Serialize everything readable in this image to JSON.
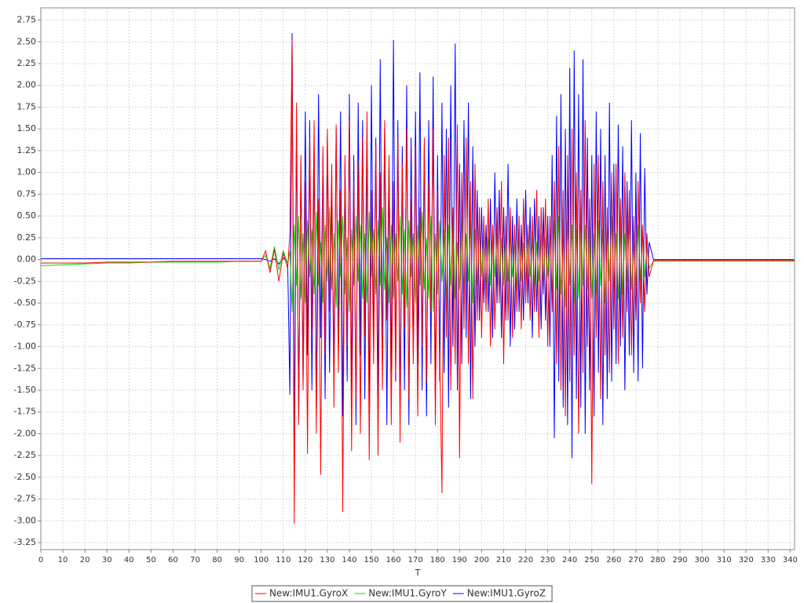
{
  "chart_data": {
    "type": "line",
    "x_label": "T",
    "xlim": [
      0,
      342
    ],
    "ylim": [
      -3.33,
      2.89
    ],
    "xticks": [
      0,
      10,
      20,
      30,
      40,
      50,
      60,
      70,
      80,
      90,
      100,
      110,
      120,
      130,
      140,
      150,
      160,
      170,
      180,
      190,
      200,
      210,
      220,
      230,
      240,
      250,
      260,
      270,
      280,
      290,
      300,
      310,
      320,
      330,
      340
    ],
    "yticks": [
      -3.25,
      {
        "value": -3,
        "label": "-3.00"
      },
      -2.75,
      {
        "value": -2.5,
        "label": "-2.50"
      },
      -2.25,
      {
        "value": -2,
        "label": "-2.00"
      },
      -1.75,
      {
        "value": -1.5,
        "label": "-1.50"
      },
      -1.25,
      {
        "value": -1,
        "label": "-1.00"
      },
      -0.75,
      {
        "value": -0.5,
        "label": "-0.50"
      },
      -0.25,
      {
        "value": 0,
        "label": "0.00"
      },
      0.25,
      {
        "value": 0.5,
        "label": "0.50"
      },
      0.75,
      {
        "value": 1,
        "label": "1.00"
      },
      1.25,
      {
        "value": 1.5,
        "label": "1.50"
      },
      1.75,
      {
        "value": 2,
        "label": "2.00"
      },
      2.25,
      {
        "value": 2.5,
        "label": "2.50"
      },
      2.75
    ],
    "grid": true,
    "legend": "bottom",
    "x": [
      0,
      10,
      20,
      30,
      40,
      50,
      60,
      70,
      80,
      90,
      100,
      102,
      104,
      106,
      108,
      110,
      112,
      113,
      114,
      115,
      116,
      117,
      118,
      119,
      120,
      121,
      122,
      123,
      124,
      125,
      126,
      127,
      128,
      129,
      130,
      131,
      132,
      133,
      134,
      135,
      136,
      137,
      138,
      139,
      140,
      141,
      142,
      143,
      144,
      145,
      146,
      147,
      148,
      149,
      150,
      151,
      152,
      153,
      154,
      155,
      156,
      157,
      158,
      159,
      160,
      161,
      162,
      163,
      164,
      165,
      166,
      167,
      168,
      169,
      170,
      171,
      172,
      173,
      174,
      175,
      176,
      177,
      178,
      179,
      180,
      181,
      182,
      183,
      184,
      185,
      186,
      187,
      188,
      189,
      190,
      191,
      192,
      193,
      194,
      195,
      196,
      197,
      198,
      199,
      200,
      201,
      202,
      203,
      204,
      205,
      206,
      207,
      208,
      209,
      210,
      211,
      212,
      213,
      214,
      215,
      216,
      217,
      218,
      219,
      220,
      221,
      222,
      223,
      224,
      225,
      226,
      227,
      228,
      229,
      230,
      231,
      232,
      233,
      234,
      235,
      236,
      237,
      238,
      239,
      240,
      241,
      242,
      243,
      244,
      245,
      246,
      247,
      248,
      249,
      250,
      251,
      252,
      253,
      254,
      255,
      256,
      257,
      258,
      259,
      260,
      261,
      262,
      263,
      264,
      265,
      266,
      267,
      268,
      269,
      270,
      271,
      272,
      273,
      274,
      275,
      276,
      278,
      290,
      300,
      310,
      320,
      330,
      340,
      342
    ],
    "series": [
      {
        "name": "New:IMU1.GyroX",
        "color": "#ff0000",
        "values": [
          -0.04,
          -0.04,
          -0.04,
          -0.03,
          -0.03,
          -0.03,
          -0.02,
          -0.02,
          -0.02,
          -0.02,
          -0.02,
          0.1,
          -0.15,
          0.12,
          -0.25,
          0.08,
          -0.1,
          0.3,
          2.52,
          -3.03,
          1.8,
          -1.9,
          1.2,
          -1.5,
          0.9,
          -2.23,
          1.4,
          -0.8,
          1.6,
          -2.0,
          0.7,
          -2.47,
          1.3,
          -1.1,
          1.5,
          -0.6,
          1.1,
          -1.7,
          1.55,
          -1.3,
          0.8,
          -2.9,
          1.2,
          -1.0,
          1.6,
          -2.2,
          0.9,
          -1.6,
          1.1,
          -2.0,
          1.4,
          -0.9,
          1.7,
          -2.3,
          0.8,
          -1.2,
          1.3,
          -2.25,
          1.0,
          -1.5,
          1.6,
          -0.7,
          1.2,
          -1.9,
          0.9,
          -1.3,
          1.4,
          -2.1,
          1.1,
          -0.8,
          1.5,
          -1.6,
          0.7,
          -1.2,
          1.3,
          -1.8,
          0.6,
          -1.0,
          1.4,
          -1.4,
          0.9,
          -0.6,
          1.5,
          -1.9,
          0.8,
          -1.1,
          -2.68,
          1.2,
          -0.9,
          1.4,
          -1.5,
          0.6,
          -1.2,
          1.55,
          -2.28,
          1.0,
          -0.8,
          1.4,
          -1.2,
          0.9,
          -1.6,
          1.1,
          -0.7,
          0.6,
          -0.9,
          0.5,
          -0.6,
          0.7,
          -1.0,
          0.4,
          -0.8,
          0.6,
          -0.5,
          0.9,
          -1.2,
          0.5,
          -0.7,
          0.6,
          -0.9,
          0.4,
          -0.6,
          0.5,
          -0.8,
          0.7,
          -0.5,
          0.4,
          -0.7,
          0.5,
          -0.6,
          0.8,
          -0.9,
          0.6,
          -0.4,
          0.7,
          -1.0,
          0.5,
          -0.6,
          0.9,
          -1.2,
          1.3,
          -1.5,
          0.8,
          -1.8,
          1.2,
          -1.4,
          1.5,
          -1.1,
          1.0,
          -2.0,
          0.8,
          -1.3,
          1.6,
          -1.0,
          0.7,
          -2.58,
          1.1,
          -0.9,
          1.2,
          -1.6,
          0.9,
          -1.1,
          0.6,
          -1.3,
          1.0,
          -0.8,
          1.1,
          -1.2,
          0.7,
          -0.9,
          1.0,
          -0.6,
          0.8,
          -1.1,
          0.5,
          -0.7,
          0.9,
          -0.5,
          0.4,
          -0.6,
          0.3,
          -0.2,
          -0.01,
          -0.01,
          -0.01,
          -0.01,
          -0.01,
          -0.01,
          -0.01,
          -0.01
        ]
      },
      {
        "name": "New:IMU1.GyroY",
        "color": "#00dd00",
        "values": [
          -0.07,
          -0.06,
          -0.05,
          -0.04,
          -0.04,
          -0.03,
          -0.03,
          -0.03,
          -0.03,
          -0.02,
          -0.02,
          0.05,
          -0.1,
          0.15,
          -0.12,
          0.1,
          -0.05,
          0.1,
          -0.6,
          0.4,
          -0.3,
          0.5,
          -0.45,
          0.3,
          -0.5,
          0.45,
          -0.2,
          0.35,
          -0.4,
          0.55,
          -0.3,
          0.2,
          -0.5,
          0.4,
          -0.25,
          0.6,
          -0.35,
          0.3,
          -0.55,
          0.45,
          -0.2,
          0.5,
          -0.4,
          0.25,
          -0.6,
          0.35,
          -0.3,
          0.5,
          -0.25,
          0.4,
          -0.45,
          0.3,
          -0.5,
          0.55,
          -0.2,
          0.35,
          -0.4,
          0.45,
          -0.3,
          0.6,
          -0.35,
          0.25,
          -0.5,
          0.4,
          -0.45,
          0.3,
          -0.25,
          0.5,
          -0.4,
          0.35,
          -0.55,
          0.45,
          -0.2,
          0.3,
          -0.5,
          0.4,
          -0.3,
          0.55,
          -0.35,
          0.25,
          -0.45,
          0.5,
          -0.6,
          0.3,
          -0.4,
          0.45,
          -0.25,
          0.35,
          -0.5,
          0.4,
          -0.3,
          0.55,
          -0.45,
          0.2,
          -0.35,
          0.5,
          -0.4,
          0.3,
          -0.25,
          0.45,
          -0.5,
          0.35,
          -0.3,
          0.4,
          -0.2,
          0.3,
          -0.35,
          0.25,
          -0.3,
          0.35,
          -0.2,
          0.3,
          -0.4,
          0.25,
          -0.3,
          0.35,
          -0.25,
          0.3,
          -0.2,
          0.25,
          -0.35,
          0.3,
          -0.25,
          0.2,
          -0.3,
          0.35,
          -0.2,
          0.25,
          -0.3,
          0.2,
          -0.25,
          0.3,
          -0.35,
          0.25,
          -0.2,
          0.3,
          -0.4,
          0.45,
          -0.35,
          0.5,
          -0.4,
          0.3,
          -0.55,
          0.45,
          -0.3,
          0.4,
          -0.5,
          0.35,
          -0.45,
          0.55,
          -0.3,
          0.4,
          -0.35,
          0.5,
          -0.45,
          0.3,
          -0.4,
          0.45,
          -0.3,
          0.35,
          -0.5,
          0.4,
          -0.25,
          0.5,
          -0.35,
          0.3,
          -0.45,
          0.35,
          -0.4,
          0.3,
          -0.25,
          0.45,
          -0.35,
          0.2,
          -0.3,
          0.4,
          -0.25,
          0.3,
          -0.2,
          0.15,
          -0.1,
          -0.02,
          -0.02,
          -0.02,
          -0.02,
          -0.02,
          -0.02,
          -0.02,
          -0.02
        ]
      },
      {
        "name": "New:IMU1.GyroZ",
        "color": "#0000ff",
        "values": [
          0.01,
          0.01,
          0.01,
          0.01,
          0.01,
          0.01,
          0.01,
          0.01,
          0.01,
          0.01,
          0.01,
          0.0,
          -0.02,
          0.01,
          -0.05,
          0.02,
          -0.03,
          -1.55,
          2.6,
          -2.08,
          1.5,
          -1.8,
          1.1,
          -1.4,
          1.7,
          -1.1,
          1.6,
          -1.5,
          1.3,
          -1.7,
          1.9,
          -0.9,
          1.2,
          -1.6,
          1.4,
          -1.3,
          0.8,
          -1.2,
          1.5,
          -1.0,
          1.7,
          -1.8,
          1.1,
          -1.4,
          1.9,
          -1.5,
          1.2,
          -1.9,
          1.8,
          -1.1,
          1.6,
          -1.6,
          1.3,
          -1.7,
          2.0,
          -1.0,
          1.4,
          -1.6,
          2.3,
          -1.2,
          1.5,
          -1.9,
          1.1,
          -1.3,
          2.52,
          -1.4,
          1.6,
          -1.7,
          1.3,
          -1.5,
          2.0,
          -1.9,
          1.4,
          -1.1,
          1.7,
          -1.2,
          2.15,
          -1.5,
          1.3,
          -1.8,
          1.6,
          -1.2,
          2.1,
          -1.6,
          1.2,
          -1.4,
          1.8,
          -1.3,
          1.5,
          -1.7,
          2.0,
          -1.0,
          2.48,
          -1.5,
          1.1,
          -1.2,
          1.6,
          -0.9,
          1.8,
          -1.6,
          1.3,
          -1.0,
          0.8,
          -0.7,
          0.6,
          -0.5,
          0.4,
          -0.6,
          0.7,
          -0.9,
          1.0,
          -0.5,
          0.8,
          -0.9,
          0.6,
          -0.7,
          1.1,
          -1.0,
          0.5,
          -0.8,
          0.7,
          -0.6,
          0.4,
          -0.7,
          0.8,
          -0.5,
          0.6,
          -0.9,
          0.7,
          -0.6,
          0.5,
          -0.8,
          0.6,
          -0.7,
          0.5,
          -1.0,
          1.2,
          -2.05,
          1.65,
          -1.4,
          1.9,
          -1.7,
          1.5,
          -1.9,
          2.2,
          -2.28,
          2.4,
          -1.6,
          1.9,
          -1.7,
          2.3,
          -2.0,
          1.4,
          -1.5,
          1.2,
          -1.8,
          1.7,
          -1.3,
          1.5,
          -1.9,
          1.2,
          -1.6,
          1.8,
          -1.4,
          1.1,
          -1.2,
          1.55,
          -1.0,
          1.3,
          -1.5,
          0.9,
          -1.1,
          1.6,
          -1.3,
          1.0,
          -1.4,
          1.45,
          -1.25,
          1.05,
          -0.4,
          0.2,
          0.0,
          0.0,
          0.0,
          0.0,
          0.0,
          0.0,
          0.0,
          0.0
        ]
      }
    ]
  }
}
